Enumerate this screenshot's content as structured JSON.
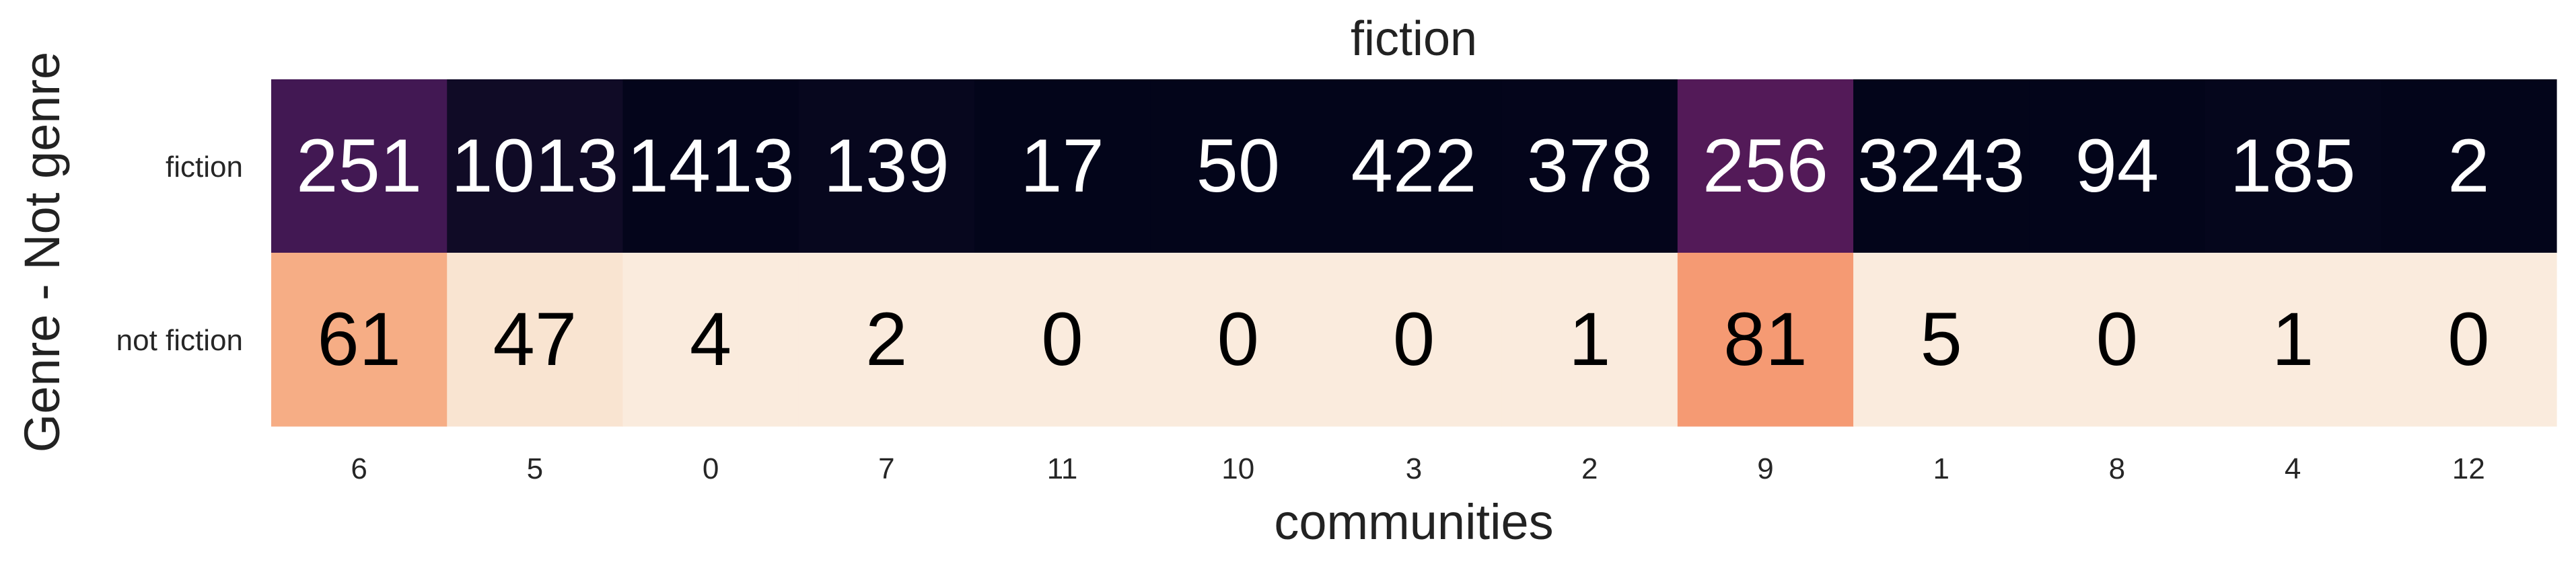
{
  "chart_data": {
    "type": "heatmap",
    "title": "fiction",
    "xlabel": "communities",
    "ylabel": "Genre - Not genre",
    "rows": [
      "fiction",
      "not fiction"
    ],
    "columns": [
      "6",
      "5",
      "0",
      "7",
      "11",
      "10",
      "3",
      "2",
      "9",
      "1",
      "8",
      "4",
      "12"
    ],
    "values": [
      [
        251,
        1013,
        1413,
        139,
        17,
        50,
        422,
        378,
        256,
        3243,
        94,
        185,
        2
      ],
      [
        61,
        47,
        4,
        2,
        0,
        0,
        0,
        1,
        81,
        5,
        0,
        1,
        0
      ]
    ],
    "colormap": "rocket",
    "grid": false,
    "colorbar": false
  }
}
